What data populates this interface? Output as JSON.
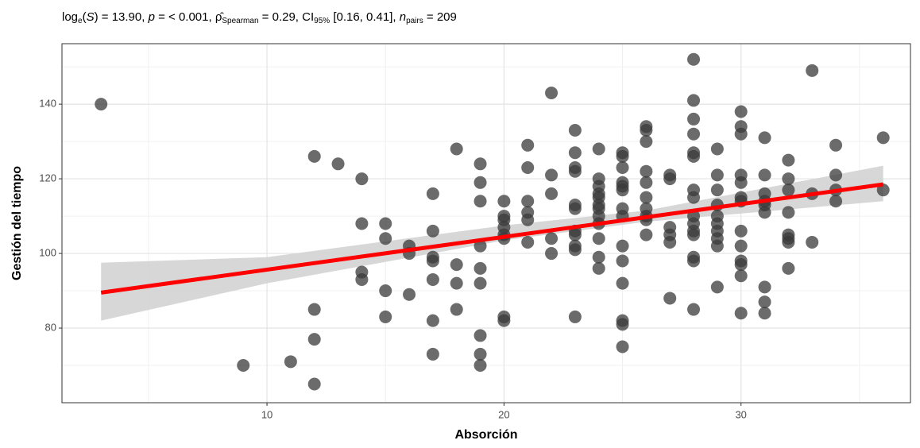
{
  "chart_data": {
    "type": "scatter",
    "title_parts": [
      {
        "text": "log",
        "style": "normal"
      },
      {
        "text": "e",
        "style": "sub"
      },
      {
        "text": "(",
        "style": "normal"
      },
      {
        "text": "S",
        "style": "italic"
      },
      {
        "text": ") = 13.90, ",
        "style": "normal"
      },
      {
        "text": "p",
        "style": "italic"
      },
      {
        "text": " = < 0.001, ",
        "style": "normal"
      },
      {
        "text": "ρ̂",
        "style": "normal"
      },
      {
        "text": "Spearman",
        "style": "sub"
      },
      {
        "text": " = 0.29, CI",
        "style": "normal"
      },
      {
        "text": "95%",
        "style": "sub"
      },
      {
        "text": " [0.16, 0.41], ",
        "style": "normal"
      },
      {
        "text": "n",
        "style": "italic"
      },
      {
        "text": "pairs",
        "style": "sub"
      },
      {
        "text": " = 209",
        "style": "normal"
      }
    ],
    "xlabel": "Absorción",
    "ylabel": "Gestión del tiempo",
    "xlim": [
      1.35,
      37.15
    ],
    "ylim": [
      60,
      156.2
    ],
    "xticks": [
      10,
      20,
      30
    ],
    "yticks": [
      80,
      100,
      120,
      140
    ],
    "x_minor_ticks": [
      5,
      15,
      25,
      35
    ],
    "y_minor_ticks": [
      70,
      90,
      110,
      130,
      150
    ],
    "grid": true,
    "color": "#3a3a3a",
    "x": [
      3,
      9,
      11,
      12,
      12,
      12,
      12,
      13,
      14,
      14,
      14,
      14,
      15,
      15,
      15,
      15,
      16,
      16,
      16,
      17,
      17,
      17,
      17,
      17,
      17,
      17,
      18,
      18,
      18,
      18,
      19,
      19,
      19,
      19,
      19,
      19,
      19,
      19,
      19,
      20,
      20,
      20,
      20,
      20,
      20,
      20,
      20,
      21,
      21,
      21,
      21,
      21,
      21,
      22,
      22,
      22,
      22,
      22,
      23,
      23,
      23,
      23,
      23,
      23,
      23,
      23,
      23,
      23,
      23,
      24,
      24,
      24,
      24,
      24,
      24,
      24,
      24,
      24,
      24,
      24,
      24,
      25,
      25,
      25,
      25,
      25,
      25,
      25,
      25,
      25,
      25,
      25,
      25,
      25,
      25,
      26,
      26,
      26,
      26,
      26,
      26,
      26,
      26,
      26,
      26,
      27,
      27,
      27,
      27,
      27,
      27,
      28,
      28,
      28,
      28,
      28,
      28,
      28,
      28,
      28,
      28,
      28,
      28,
      28,
      28,
      28,
      29,
      29,
      29,
      29,
      29,
      29,
      29,
      29,
      29,
      29,
      30,
      30,
      30,
      30,
      30,
      30,
      30,
      30,
      30,
      30,
      30,
      30,
      30,
      31,
      31,
      31,
      31,
      31,
      31,
      31,
      31,
      31,
      32,
      32,
      32,
      32,
      32,
      32,
      32,
      32,
      33,
      33,
      33,
      34,
      34,
      34,
      34,
      36,
      36
    ],
    "values": [
      140,
      70,
      71,
      126,
      85,
      77,
      65,
      124,
      120,
      108,
      95,
      93,
      108,
      104,
      90,
      83,
      102,
      100,
      89,
      116,
      106,
      99,
      98,
      93,
      82,
      73,
      128,
      97,
      92,
      85,
      124,
      119,
      114,
      102,
      96,
      92,
      78,
      73,
      70,
      114,
      110,
      109,
      107,
      105,
      104,
      83,
      82,
      129,
      123,
      114,
      111,
      109,
      103,
      143,
      121,
      116,
      104,
      100,
      133,
      127,
      123,
      122,
      113,
      112,
      106,
      105,
      102,
      101,
      83,
      128,
      120,
      118,
      116,
      115,
      113,
      112,
      110,
      108,
      104,
      99,
      96,
      127,
      126,
      123,
      119,
      118,
      117,
      112,
      110,
      102,
      98,
      92,
      82,
      81,
      75,
      134,
      133,
      130,
      122,
      119,
      115,
      112,
      110,
      109,
      105,
      121,
      120,
      107,
      105,
      103,
      88,
      152,
      141,
      136,
      132,
      127,
      126,
      117,
      115,
      110,
      108,
      106,
      105,
      99,
      98,
      85,
      128,
      121,
      117,
      113,
      110,
      108,
      106,
      104,
      102,
      91,
      138,
      134,
      132,
      121,
      119,
      115,
      114,
      106,
      102,
      98,
      97,
      94,
      84,
      131,
      121,
      116,
      114,
      113,
      111,
      91,
      87,
      84,
      125,
      120,
      117,
      111,
      105,
      104,
      103,
      96,
      149,
      116,
      103,
      129,
      121,
      117,
      114,
      131,
      117
    ],
    "fit": {
      "x": [
        3,
        36
      ],
      "values": [
        89.5,
        118.5
      ],
      "color": "#ff0000"
    },
    "band": {
      "x": [
        3,
        10,
        20,
        26,
        36
      ],
      "lower": [
        82,
        92,
        103.5,
        108.5,
        114
      ],
      "upper": [
        97.5,
        99,
        107.5,
        111.5,
        123.5
      ],
      "color": "#d3d3d3"
    }
  }
}
